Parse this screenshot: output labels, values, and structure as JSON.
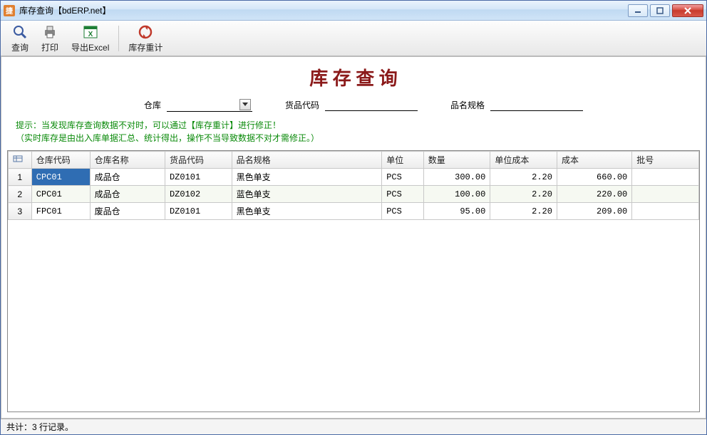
{
  "window": {
    "title": "库存查询【bdERP.net】"
  },
  "toolbar": {
    "query": "查询",
    "print": "打印",
    "export": "导出Excel",
    "recalc": "库存重计"
  },
  "page": {
    "title": "库 存 查 询"
  },
  "filter": {
    "warehouse_label": "仓库",
    "warehouse_value": "",
    "product_code_label": "货品代码",
    "product_code_value": "",
    "spec_label": "品名规格",
    "spec_value": ""
  },
  "hint": {
    "line1": "提示：当发现库存查询数据不对时，可以通过【库存重计】进行修正！",
    "line2": "（实时库存是由出入库单据汇总、统计得出，操作不当导致数据不对才需修正。）"
  },
  "grid": {
    "columns": {
      "whcode": "仓库代码",
      "whname": "仓库名称",
      "pcode": "货品代码",
      "spec": "品名规格",
      "unit": "单位",
      "qty": "数量",
      "ucost": "单位成本",
      "cost": "成本",
      "batch": "批号"
    },
    "rows": [
      {
        "n": "1",
        "whcode": "CPC01",
        "whname": "成品仓",
        "pcode": "DZ0101",
        "spec": "黑色单支",
        "unit": "PCS",
        "qty": "300.00",
        "ucost": "2.20",
        "cost": "660.00",
        "batch": "",
        "selected": true
      },
      {
        "n": "2",
        "whcode": "CPC01",
        "whname": "成品仓",
        "pcode": "DZ0102",
        "spec": "蓝色单支",
        "unit": "PCS",
        "qty": "100.00",
        "ucost": "2.20",
        "cost": "220.00",
        "batch": ""
      },
      {
        "n": "3",
        "whcode": "FPC01",
        "whname": "废品仓",
        "pcode": "DZ0101",
        "spec": "黑色单支",
        "unit": "PCS",
        "qty": "95.00",
        "ucost": "2.20",
        "cost": "209.00",
        "batch": ""
      }
    ]
  },
  "status": {
    "text": "共计：3 行记录。"
  },
  "colors": {
    "title_color": "#8b1a1a",
    "hint_color": "#0a8a0a",
    "selection_bg": "#2f6db3"
  }
}
